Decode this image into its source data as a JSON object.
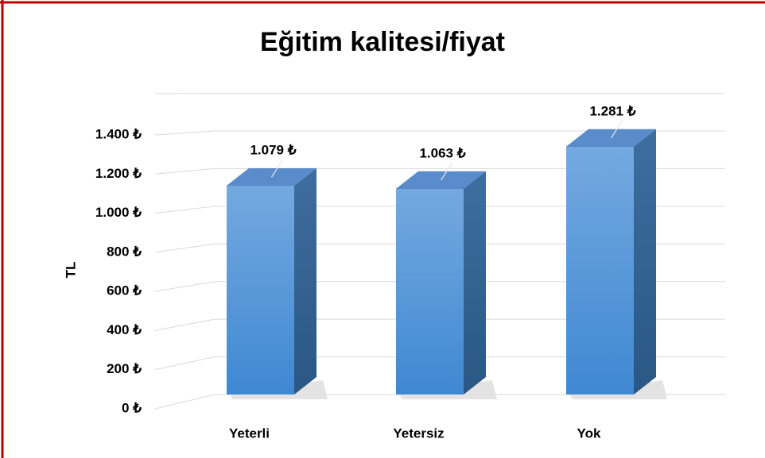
{
  "chart_data": {
    "type": "bar3d",
    "title": "Eğitim kalitesi/fiyat",
    "y_label": "TL",
    "categories": [
      "Yeterli",
      "Yetersiz",
      "Yok"
    ],
    "values": [
      1079,
      1063,
      1281
    ],
    "value_labels": [
      "1.079 ₺",
      "1.063 ₺",
      "1.281 ₺"
    ],
    "color": "#5b9bd5",
    "ylim": [
      0,
      1400
    ],
    "yticks": [
      {
        "value": 0,
        "label": "0 ₺"
      },
      {
        "value": 200,
        "label": "200 ₺"
      },
      {
        "value": 400,
        "label": "400 ₺"
      },
      {
        "value": 600,
        "label": "600 ₺"
      },
      {
        "value": 800,
        "label": "800 ₺"
      },
      {
        "value": 1000,
        "label": "1.000 ₺"
      },
      {
        "value": 1200,
        "label": "1.200 ₺"
      },
      {
        "value": 1400,
        "label": "1.400 ₺"
      }
    ],
    "grid": true
  }
}
